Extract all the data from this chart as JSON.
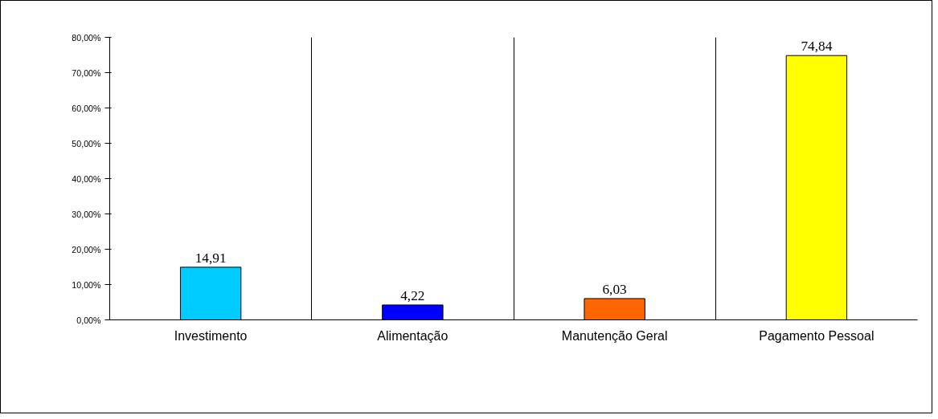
{
  "chart_data": {
    "type": "bar",
    "categories": [
      "Investimento",
      "Alimentação",
      "Manutenção Geral",
      "Pagamento Pessoal"
    ],
    "values": [
      14.91,
      4.22,
      6.03,
      74.84
    ],
    "colors": [
      "#00ccff",
      "#0000ff",
      "#ff6600",
      "#ffff00"
    ],
    "value_labels": [
      "14,91",
      "4,22",
      "6,03",
      "74,84"
    ],
    "ylim": [
      0,
      80
    ],
    "yticks": [
      {
        "value": 0,
        "label": "0,00%"
      },
      {
        "value": 10,
        "label": "10,00%"
      },
      {
        "value": 20,
        "label": "20,00%"
      },
      {
        "value": 30,
        "label": "30,00%"
      },
      {
        "value": 40,
        "label": "40,00%"
      },
      {
        "value": 50,
        "label": "50,00%"
      },
      {
        "value": 60,
        "label": "60,00%"
      },
      {
        "value": 70,
        "label": "70,00%"
      },
      {
        "value": 80,
        "label": "80,00%"
      }
    ],
    "grid": "x"
  }
}
